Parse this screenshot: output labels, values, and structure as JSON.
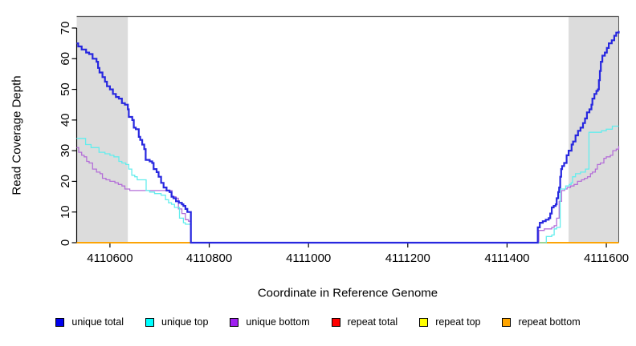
{
  "chart_data": {
    "type": "line",
    "subtype": "step",
    "title": "",
    "xlabel": "Coordinate in Reference Genome",
    "ylabel": "Read Coverage Depth",
    "xlim": [
      4110533,
      4111625
    ],
    "ylim": [
      0,
      70
    ],
    "x_ticks": [
      4110600,
      4110800,
      4111000,
      4111200,
      4111400,
      4111600
    ],
    "y_ticks": [
      0,
      10,
      20,
      30,
      40,
      50,
      60,
      70
    ],
    "grid": false,
    "legend_position": "bottom",
    "shade_color": "#DCDCDC",
    "box_color": "#555555",
    "axis_color": "#000000",
    "shaded_regions": [
      {
        "x0": 4110533,
        "x1": 4110636
      },
      {
        "x0": 4111524,
        "x1": 4111625
      }
    ],
    "legend_order": [
      "unique total",
      "unique top",
      "unique bottom",
      "repeat total",
      "repeat top",
      "repeat bottom"
    ],
    "series": [
      {
        "name": "repeat total",
        "color": "#FF0000",
        "line_color": "#E60000",
        "width": 1.4,
        "points": [
          [
            4110533,
            0
          ],
          [
            4111625,
            0
          ]
        ]
      },
      {
        "name": "repeat top",
        "color": "#FFFF00",
        "line_color": "#FFE800",
        "width": 1.4,
        "points": [
          [
            4110533,
            0
          ],
          [
            4111625,
            0
          ]
        ]
      },
      {
        "name": "repeat bottom",
        "color": "#FFA500",
        "line_color": "#FFA500",
        "width": 1.8,
        "points": [
          [
            4110533,
            0
          ],
          [
            4111625,
            0
          ]
        ]
      },
      {
        "name": "unique bottom",
        "color": "#A020F0",
        "line_color": "#B46FD8",
        "width": 1.3,
        "points": [
          [
            4110533,
            31
          ],
          [
            4110537,
            29.5
          ],
          [
            4110543,
            28.5
          ],
          [
            4110548,
            28
          ],
          [
            4110553,
            26.5
          ],
          [
            4110558,
            26
          ],
          [
            4110565,
            24
          ],
          [
            4110573,
            23
          ],
          [
            4110580,
            22.5
          ],
          [
            4110585,
            21
          ],
          [
            4110592,
            20.5
          ],
          [
            4110600,
            20
          ],
          [
            4110610,
            19.5
          ],
          [
            4110617,
            19
          ],
          [
            4110624,
            18.5
          ],
          [
            4110630,
            17.5
          ],
          [
            4110640,
            17
          ],
          [
            4110725,
            15
          ],
          [
            4110733,
            14.5
          ],
          [
            4110738,
            11
          ],
          [
            4110745,
            9.5
          ],
          [
            4110752,
            7.5
          ],
          [
            4110758,
            7
          ],
          [
            4110763,
            0
          ],
          [
            4111464,
            4
          ],
          [
            4111475,
            4.5
          ],
          [
            4111490,
            5
          ],
          [
            4111495,
            5.5
          ],
          [
            4111500,
            8
          ],
          [
            4111505,
            13.5
          ],
          [
            4111510,
            17
          ],
          [
            4111516,
            17.5
          ],
          [
            4111521,
            18
          ],
          [
            4111528,
            18.5
          ],
          [
            4111535,
            19
          ],
          [
            4111542,
            20
          ],
          [
            4111550,
            20.5
          ],
          [
            4111556,
            21
          ],
          [
            4111562,
            21.5
          ],
          [
            4111568,
            22.5
          ],
          [
            4111572,
            23
          ],
          [
            4111578,
            24
          ],
          [
            4111582,
            25.5
          ],
          [
            4111588,
            26
          ],
          [
            4111595,
            27.5
          ],
          [
            4111600,
            28
          ],
          [
            4111608,
            28.5
          ],
          [
            4111613,
            30
          ],
          [
            4111620,
            30.5
          ],
          [
            4111625,
            31.5
          ]
        ]
      },
      {
        "name": "unique top",
        "color": "#00FFFF",
        "line_color": "#63EDED",
        "width": 1.3,
        "points": [
          [
            4110533,
            34
          ],
          [
            4110551,
            32
          ],
          [
            4110562,
            31
          ],
          [
            4110578,
            29.5
          ],
          [
            4110590,
            29
          ],
          [
            4110600,
            28.5
          ],
          [
            4110608,
            28
          ],
          [
            4110618,
            26.5
          ],
          [
            4110624,
            26
          ],
          [
            4110632,
            25.5
          ],
          [
            4110638,
            24
          ],
          [
            4110644,
            22
          ],
          [
            4110650,
            21.5
          ],
          [
            4110655,
            20.5
          ],
          [
            4110673,
            17
          ],
          [
            4110680,
            16.5
          ],
          [
            4110690,
            16
          ],
          [
            4110703,
            15.5
          ],
          [
            4110712,
            14
          ],
          [
            4110718,
            13
          ],
          [
            4110724,
            12.5
          ],
          [
            4110730,
            11.5
          ],
          [
            4110740,
            8
          ],
          [
            4110748,
            6.5
          ],
          [
            4110752,
            6
          ],
          [
            4110763,
            0
          ],
          [
            4111479,
            2
          ],
          [
            4111490,
            2.5
          ],
          [
            4111495,
            4.5
          ],
          [
            4111500,
            5
          ],
          [
            4111507,
            17.5
          ],
          [
            4111518,
            18.5
          ],
          [
            4111525,
            19
          ],
          [
            4111529,
            19.5
          ],
          [
            4111532,
            21.5
          ],
          [
            4111538,
            22.5
          ],
          [
            4111548,
            23
          ],
          [
            4111558,
            24
          ],
          [
            4111565,
            36
          ],
          [
            4111590,
            36.5
          ],
          [
            4111600,
            37
          ],
          [
            4111612,
            38
          ],
          [
            4111625,
            38
          ]
        ]
      },
      {
        "name": "unique total",
        "color": "#0000EE",
        "line_color": "#2727DF",
        "width": 2.2,
        "points": [
          [
            4110533,
            65
          ],
          [
            4110536,
            64
          ],
          [
            4110543,
            63
          ],
          [
            4110552,
            62
          ],
          [
            4110558,
            61.5
          ],
          [
            4110565,
            60
          ],
          [
            4110573,
            59
          ],
          [
            4110576,
            57
          ],
          [
            4110579,
            55.5
          ],
          [
            4110585,
            54
          ],
          [
            4110590,
            52.5
          ],
          [
            4110594,
            51
          ],
          [
            4110600,
            50
          ],
          [
            4110606,
            48.5
          ],
          [
            4110612,
            47.5
          ],
          [
            4110618,
            47
          ],
          [
            4110624,
            45.5
          ],
          [
            4110630,
            45
          ],
          [
            4110636,
            43.5
          ],
          [
            4110638,
            41
          ],
          [
            4110645,
            40
          ],
          [
            4110648,
            37.5
          ],
          [
            4110652,
            37
          ],
          [
            4110658,
            34.5
          ],
          [
            4110661,
            33.5
          ],
          [
            4110665,
            32
          ],
          [
            4110669,
            30.5
          ],
          [
            4110672,
            27
          ],
          [
            4110680,
            26.5
          ],
          [
            4110685,
            26
          ],
          [
            4110688,
            24
          ],
          [
            4110694,
            23
          ],
          [
            4110698,
            21.5
          ],
          [
            4110703,
            19.5
          ],
          [
            4110708,
            18
          ],
          [
            4110714,
            17
          ],
          [
            4110720,
            16.5
          ],
          [
            4110724,
            15
          ],
          [
            4110728,
            14.5
          ],
          [
            4110733,
            13.5
          ],
          [
            4110739,
            13
          ],
          [
            4110745,
            12.5
          ],
          [
            4110748,
            12
          ],
          [
            4110752,
            11
          ],
          [
            4110756,
            10
          ],
          [
            4110763,
            0
          ],
          [
            4111462,
            5
          ],
          [
            4111466,
            6.5
          ],
          [
            4111472,
            7
          ],
          [
            4111478,
            7.5
          ],
          [
            4111484,
            8
          ],
          [
            4111487,
            9.5
          ],
          [
            4111490,
            11.5
          ],
          [
            4111494,
            12
          ],
          [
            4111498,
            12.5
          ],
          [
            4111500,
            14.5
          ],
          [
            4111503,
            16.5
          ],
          [
            4111505,
            18
          ],
          [
            4111507,
            21.5
          ],
          [
            4111509,
            24
          ],
          [
            4111511,
            25
          ],
          [
            4111515,
            26
          ],
          [
            4111520,
            28.5
          ],
          [
            4111524,
            30
          ],
          [
            4111530,
            32
          ],
          [
            4111533,
            33
          ],
          [
            4111538,
            35
          ],
          [
            4111543,
            36.5
          ],
          [
            4111548,
            37.5
          ],
          [
            4111553,
            39
          ],
          [
            4111557,
            40.5
          ],
          [
            4111561,
            42.5
          ],
          [
            4111566,
            43.5
          ],
          [
            4111570,
            45
          ],
          [
            4111572,
            47
          ],
          [
            4111576,
            48.5
          ],
          [
            4111580,
            49.5
          ],
          [
            4111583,
            50
          ],
          [
            4111585,
            53
          ],
          [
            4111587,
            56
          ],
          [
            4111589,
            59
          ],
          [
            4111592,
            61
          ],
          [
            4111597,
            62
          ],
          [
            4111601,
            63.5
          ],
          [
            4111605,
            65
          ],
          [
            4111611,
            66
          ],
          [
            4111616,
            67.5
          ],
          [
            4111620,
            68.5
          ],
          [
            4111625,
            69
          ]
        ]
      }
    ]
  }
}
